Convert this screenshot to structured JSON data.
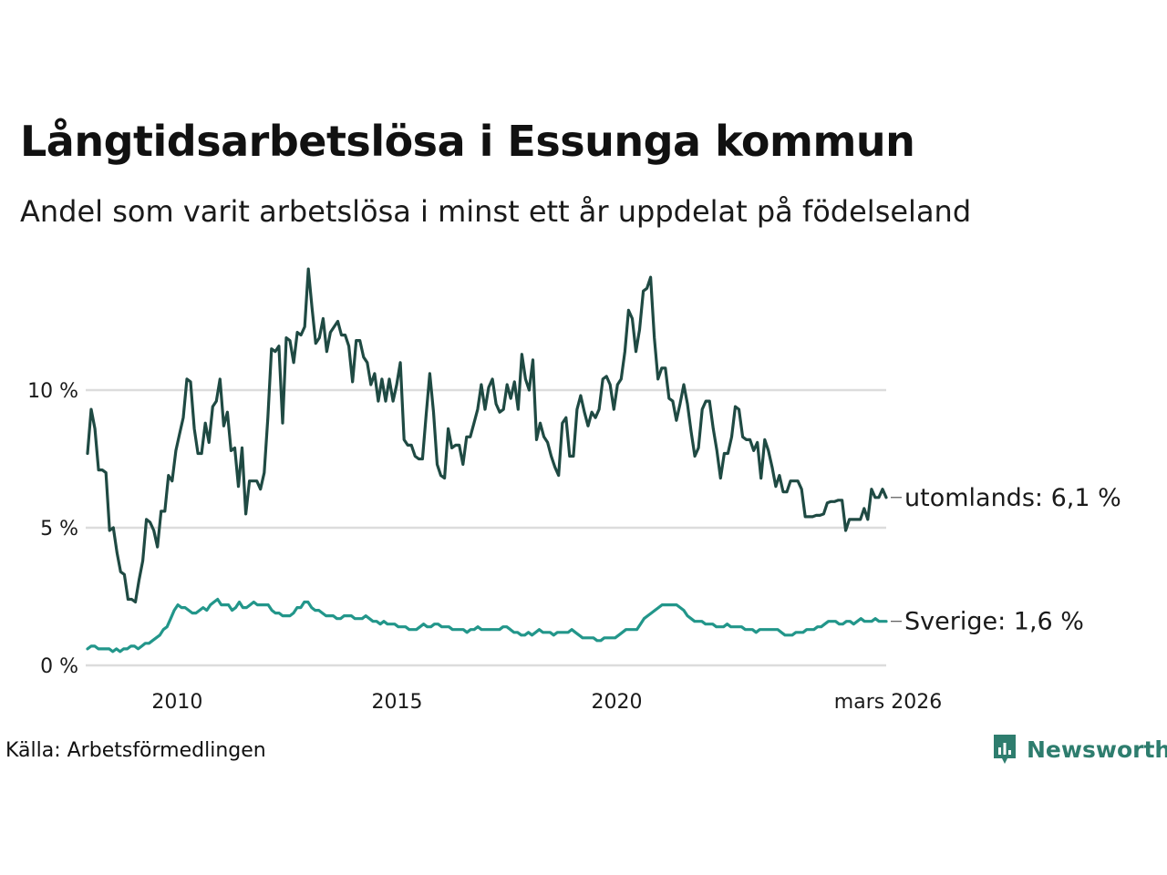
{
  "header": {
    "title": "Långtidsarbetslösa i Essunga kommun",
    "subtitle": "Andel som varit arbetslösa i minst ett år uppdelat på födelseland"
  },
  "footer": {
    "source": "Källa: Arbetsförmedlingen",
    "brand": "Newsworthy"
  },
  "colors": {
    "grid": "#dcdcdc",
    "utomlands": "#1f4a43",
    "sverige": "#22968a",
    "brand": "#2e7d6e",
    "text": "#1a1a1a"
  },
  "chart_data": {
    "type": "line",
    "title": "Långtidsarbetslösa i Essunga kommun",
    "subtitle": "Andel som varit arbetslösa i minst ett år uppdelat på födelseland",
    "xlabel": "",
    "ylabel": "",
    "unit": "%",
    "x_start": "2008-01",
    "x_end": "2026-03",
    "frequency": "monthly",
    "xlim": [
      2008.0,
      2026.17
    ],
    "ylim": [
      0,
      14.5
    ],
    "grid": true,
    "yticks": [
      {
        "value": 0,
        "label": "0 %"
      },
      {
        "value": 5,
        "label": "5 %"
      },
      {
        "value": 10,
        "label": "10 %"
      }
    ],
    "xticks": [
      {
        "value": 2010,
        "label": "2010"
      },
      {
        "value": 2015,
        "label": "2015"
      },
      {
        "value": 2020,
        "label": "2020"
      },
      {
        "value": 2026.17,
        "label": "mars 2026"
      }
    ],
    "series": [
      {
        "name": "utomlands",
        "end_label": "utomlands: 6,1 %",
        "color": "#1f4a43",
        "values": [
          7.7,
          9.3,
          8.6,
          7.1,
          7.1,
          7.0,
          4.9,
          5.0,
          4.1,
          3.4,
          3.3,
          2.4,
          2.4,
          2.3,
          3.1,
          3.8,
          5.3,
          5.2,
          4.9,
          4.3,
          5.6,
          5.6,
          6.9,
          6.7,
          7.8,
          8.4,
          9.0,
          10.4,
          10.3,
          8.6,
          7.7,
          7.7,
          8.8,
          8.1,
          9.4,
          9.6,
          10.4,
          8.7,
          9.2,
          7.8,
          7.9,
          6.5,
          7.9,
          5.5,
          6.7,
          6.7,
          6.7,
          6.4,
          7.0,
          9.0,
          11.5,
          11.4,
          11.6,
          8.8,
          11.9,
          11.8,
          11.0,
          12.1,
          12.0,
          12.3,
          14.4,
          13.0,
          11.7,
          11.9,
          12.6,
          11.4,
          12.1,
          12.3,
          12.5,
          12.0,
          12.0,
          11.6,
          10.3,
          11.8,
          11.8,
          11.2,
          11.0,
          10.2,
          10.6,
          9.6,
          10.4,
          9.6,
          10.4,
          9.6,
          10.2,
          11.0,
          8.2,
          8.0,
          8.0,
          7.6,
          7.5,
          7.5,
          9.1,
          10.6,
          9.2,
          7.3,
          6.9,
          6.8,
          8.6,
          7.9,
          8.0,
          8.0,
          7.3,
          8.3,
          8.3,
          8.8,
          9.3,
          10.2,
          9.3,
          10.1,
          10.4,
          9.5,
          9.2,
          9.3,
          10.2,
          9.7,
          10.3,
          9.3,
          11.3,
          10.4,
          10.0,
          11.1,
          8.2,
          8.8,
          8.3,
          8.1,
          7.6,
          7.2,
          6.9,
          8.8,
          9.0,
          7.6,
          7.6,
          9.3,
          9.8,
          9.2,
          8.7,
          9.2,
          9.0,
          9.3,
          10.4,
          10.5,
          10.2,
          9.3,
          10.2,
          10.4,
          11.4,
          12.9,
          12.6,
          11.4,
          12.2,
          13.6,
          13.7,
          14.1,
          11.9,
          10.4,
          10.8,
          10.8,
          9.7,
          9.6,
          8.9,
          9.5,
          10.2,
          9.5,
          8.5,
          7.6,
          7.9,
          9.3,
          9.6,
          9.6,
          8.6,
          7.8,
          6.8,
          7.7,
          7.7,
          8.3,
          9.4,
          9.3,
          8.3,
          8.2,
          8.2,
          7.8,
          8.1,
          6.8,
          8.2,
          7.8,
          7.2,
          6.5,
          6.9,
          6.3,
          6.3,
          6.7,
          6.7,
          6.7,
          6.4,
          5.4,
          5.4,
          5.4,
          5.45,
          5.45,
          5.5,
          5.9,
          5.95,
          5.95,
          6.0,
          6.0,
          4.9,
          5.3,
          5.3,
          5.3,
          5.3,
          5.7,
          5.3,
          6.4,
          6.1,
          6.1,
          6.4,
          6.1
        ]
      },
      {
        "name": "Sverige",
        "end_label": "Sverige: 1,6 %",
        "color": "#22968a",
        "values": [
          0.6,
          0.7,
          0.7,
          0.6,
          0.6,
          0.6,
          0.6,
          0.5,
          0.6,
          0.5,
          0.6,
          0.6,
          0.7,
          0.7,
          0.6,
          0.7,
          0.8,
          0.8,
          0.9,
          1.0,
          1.1,
          1.3,
          1.4,
          1.7,
          2.0,
          2.2,
          2.1,
          2.1,
          2.0,
          1.9,
          1.9,
          2.0,
          2.1,
          2.0,
          2.2,
          2.3,
          2.4,
          2.2,
          2.2,
          2.2,
          2.0,
          2.1,
          2.3,
          2.1,
          2.1,
          2.2,
          2.3,
          2.2,
          2.2,
          2.2,
          2.2,
          2.0,
          1.9,
          1.9,
          1.8,
          1.8,
          1.8,
          1.9,
          2.1,
          2.1,
          2.3,
          2.3,
          2.1,
          2.0,
          2.0,
          1.9,
          1.8,
          1.8,
          1.8,
          1.7,
          1.7,
          1.8,
          1.8,
          1.8,
          1.7,
          1.7,
          1.7,
          1.8,
          1.7,
          1.6,
          1.6,
          1.5,
          1.6,
          1.5,
          1.5,
          1.5,
          1.4,
          1.4,
          1.4,
          1.3,
          1.3,
          1.3,
          1.4,
          1.5,
          1.4,
          1.4,
          1.5,
          1.5,
          1.4,
          1.4,
          1.4,
          1.3,
          1.3,
          1.3,
          1.3,
          1.2,
          1.3,
          1.3,
          1.4,
          1.3,
          1.3,
          1.3,
          1.3,
          1.3,
          1.3,
          1.4,
          1.4,
          1.3,
          1.2,
          1.2,
          1.1,
          1.1,
          1.2,
          1.1,
          1.2,
          1.3,
          1.2,
          1.2,
          1.2,
          1.1,
          1.2,
          1.2,
          1.2,
          1.2,
          1.3,
          1.2,
          1.1,
          1.0,
          1.0,
          1.0,
          1.0,
          0.9,
          0.9,
          1.0,
          1.0,
          1.0,
          1.0,
          1.1,
          1.2,
          1.3,
          1.3,
          1.3,
          1.3,
          1.5,
          1.7,
          1.8,
          1.9,
          2.0,
          2.1,
          2.2,
          2.2,
          2.2,
          2.2,
          2.2,
          2.1,
          2.0,
          1.8,
          1.7,
          1.6,
          1.6,
          1.6,
          1.5,
          1.5,
          1.5,
          1.4,
          1.4,
          1.4,
          1.5,
          1.4,
          1.4,
          1.4,
          1.4,
          1.3,
          1.3,
          1.3,
          1.2,
          1.3,
          1.3,
          1.3,
          1.3,
          1.3,
          1.3,
          1.2,
          1.1,
          1.1,
          1.1,
          1.2,
          1.2,
          1.2,
          1.3,
          1.3,
          1.3,
          1.4,
          1.4,
          1.5,
          1.6,
          1.6,
          1.6,
          1.5,
          1.5,
          1.6,
          1.6,
          1.5,
          1.6,
          1.7,
          1.6,
          1.6,
          1.6,
          1.7,
          1.6,
          1.6,
          1.6
        ]
      }
    ]
  }
}
